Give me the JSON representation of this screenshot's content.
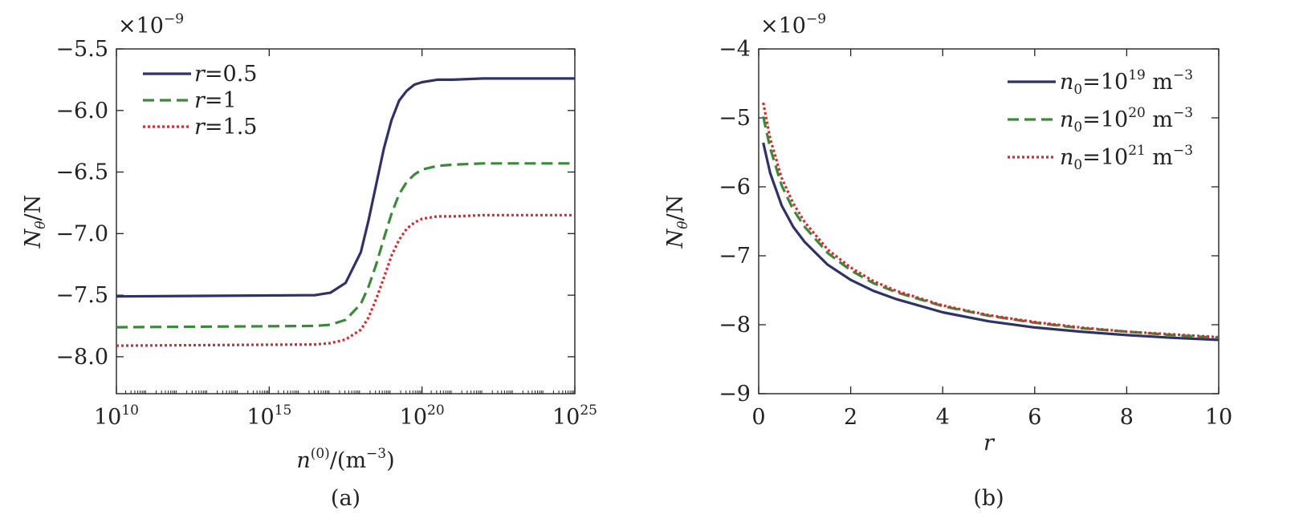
{
  "chart_data": [
    {
      "id": "a",
      "type": "line",
      "panel_caption": "(a)",
      "xscale": "log",
      "xlim_log10": [
        10,
        25
      ],
      "ylim": [
        -8.3,
        -5.5
      ],
      "multiplier": "×10",
      "multiplier_exp": "−9",
      "xlabel": {
        "base": "n",
        "sup": "(0)",
        "after": "/(m",
        "unit_sup": "−3",
        "close": ")"
      },
      "ylabel": {
        "base": "N",
        "sub": "θ",
        "after": "/N"
      },
      "xtick_values_log10": [
        10,
        15,
        20,
        25
      ],
      "xtick_labels": [
        {
          "base": "10",
          "sup": "10"
        },
        {
          "base": "10",
          "sup": "15"
        },
        {
          "base": "10",
          "sup": "20"
        },
        {
          "base": "10",
          "sup": "25"
        }
      ],
      "ytick_values": [
        -5.5,
        -6.0,
        -6.5,
        -7.0,
        -7.5,
        -8.0
      ],
      "ytick_labels": [
        "−5.5",
        "−6.0",
        "−6.5",
        "−7.0",
        "−7.5",
        "−8.0"
      ],
      "legend_position": "top-left",
      "series": [
        {
          "name": "r = 0.5",
          "legend": {
            "var": "r",
            "eq": "=",
            "val": "0.5"
          },
          "color": "#2e3266",
          "dash": "solid",
          "x_log10": [
            10,
            16.5,
            17,
            17.5,
            18,
            18.25,
            18.5,
            18.75,
            19,
            19.25,
            19.5,
            19.75,
            20,
            20.5,
            21,
            22,
            25
          ],
          "y": [
            -7.51,
            -7.5,
            -7.48,
            -7.4,
            -7.15,
            -6.89,
            -6.6,
            -6.31,
            -6.08,
            -5.92,
            -5.84,
            -5.79,
            -5.77,
            -5.75,
            -5.75,
            -5.74,
            -5.74
          ]
        },
        {
          "name": "r = 1",
          "legend": {
            "var": "r",
            "eq": "=",
            "val": "1"
          },
          "color": "#3a8a3a",
          "dash": "dashed",
          "x_log10": [
            10,
            16.5,
            17,
            17.5,
            18,
            18.25,
            18.5,
            18.75,
            19,
            19.25,
            19.5,
            19.75,
            20,
            20.5,
            21,
            22,
            25
          ],
          "y": [
            -7.76,
            -7.75,
            -7.74,
            -7.7,
            -7.57,
            -7.43,
            -7.25,
            -7.04,
            -6.84,
            -6.68,
            -6.58,
            -6.52,
            -6.48,
            -6.45,
            -6.44,
            -6.43,
            -6.43
          ]
        },
        {
          "name": "r = 1.5",
          "legend": {
            "var": "r",
            "eq": "=",
            "val": "1.5"
          },
          "color": "#e0262e",
          "dash": "dotted",
          "x_log10": [
            10,
            16.5,
            17,
            17.5,
            18,
            18.25,
            18.5,
            18.75,
            19,
            19.25,
            19.5,
            19.75,
            20,
            20.5,
            21,
            22,
            25
          ],
          "y": [
            -7.91,
            -7.9,
            -7.89,
            -7.86,
            -7.78,
            -7.68,
            -7.53,
            -7.36,
            -7.18,
            -7.05,
            -6.96,
            -6.91,
            -6.88,
            -6.86,
            -6.86,
            -6.85,
            -6.85
          ]
        }
      ]
    },
    {
      "id": "b",
      "type": "line",
      "panel_caption": "(b)",
      "xscale": "linear",
      "xlim": [
        0,
        10
      ],
      "ylim": [
        -9,
        -4
      ],
      "multiplier": "×10",
      "multiplier_exp": "−9",
      "xlabel": {
        "base": "r"
      },
      "ylabel": {
        "base": "N",
        "sub": "θ",
        "after": "/N"
      },
      "xtick_values": [
        0,
        2,
        4,
        6,
        8,
        10
      ],
      "xtick_labels": [
        "0",
        "2",
        "4",
        "6",
        "8",
        "10"
      ],
      "ytick_values": [
        -4,
        -5,
        -6,
        -7,
        -8,
        -9
      ],
      "ytick_labels": [
        "−4",
        "−5",
        "−6",
        "−7",
        "−8",
        "−9"
      ],
      "legend_position": "top-right",
      "series": [
        {
          "name": "n0 = 10^19 m^-3",
          "legend": {
            "var": "n",
            "sub": "0",
            "eq": "=",
            "base": "10",
            "exp": "19",
            "unit": "m",
            "unit_exp": "−3"
          },
          "color": "#2e3266",
          "dash": "solid",
          "x": [
            0.1,
            0.25,
            0.5,
            0.75,
            1,
            1.5,
            2,
            2.5,
            3,
            4,
            5,
            6,
            7,
            8,
            9,
            10
          ],
          "y": [
            -5.36,
            -5.8,
            -6.27,
            -6.58,
            -6.8,
            -7.13,
            -7.35,
            -7.51,
            -7.63,
            -7.82,
            -7.95,
            -8.04,
            -8.1,
            -8.15,
            -8.19,
            -8.22
          ]
        },
        {
          "name": "n0 = 10^20 m^-3",
          "legend": {
            "var": "n",
            "sub": "0",
            "eq": "=",
            "base": "10",
            "exp": "20",
            "unit": "m",
            "unit_exp": "−3"
          },
          "color": "#3a8a3a",
          "dash": "dashed",
          "x": [
            0.1,
            0.25,
            0.5,
            0.75,
            1,
            1.5,
            2,
            2.5,
            3,
            4,
            5,
            6,
            7,
            8,
            9,
            10
          ],
          "y": [
            -4.98,
            -5.44,
            -5.98,
            -6.33,
            -6.58,
            -6.96,
            -7.21,
            -7.4,
            -7.53,
            -7.73,
            -7.87,
            -7.97,
            -8.05,
            -8.1,
            -8.15,
            -8.19
          ]
        },
        {
          "name": "n0 = 10^21 m^-3",
          "legend": {
            "var": "n",
            "sub": "0",
            "eq": "=",
            "base": "10",
            "exp": "21",
            "unit": "m",
            "unit_exp": "−3"
          },
          "color": "#e0262e",
          "dash": "dotted",
          "x": [
            0.1,
            0.25,
            0.5,
            0.75,
            1,
            1.5,
            2,
            2.5,
            3,
            4,
            5,
            6,
            7,
            8,
            9,
            10
          ],
          "y": [
            -4.78,
            -5.3,
            -5.87,
            -6.24,
            -6.51,
            -6.91,
            -7.17,
            -7.37,
            -7.51,
            -7.72,
            -7.86,
            -7.96,
            -8.04,
            -8.1,
            -8.14,
            -8.18
          ]
        }
      ]
    }
  ]
}
